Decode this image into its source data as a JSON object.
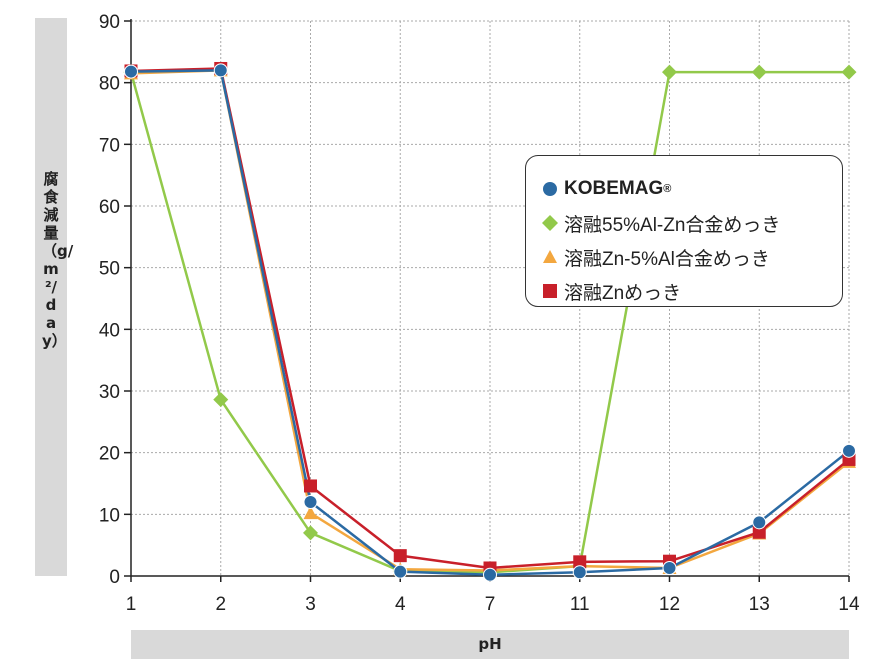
{
  "chart_data": {
    "type": "line",
    "ylabel": "腐食減量（g/m²/day）",
    "xlabel": "pH",
    "categories": [
      "1",
      "2",
      "3",
      "4",
      "7",
      "11",
      "12",
      "13",
      "14"
    ],
    "ylim": [
      0,
      90
    ],
    "yticks": [
      0,
      10,
      20,
      30,
      40,
      50,
      60,
      70,
      80,
      90
    ],
    "grid": true,
    "legend_position": "top-right",
    "series": [
      {
        "name": "KOBEMAG",
        "name_mark": "®",
        "marker": "circle",
        "color": "#2b6aa3",
        "values": [
          81.8,
          82.0,
          12.0,
          0.7,
          0.2,
          0.6,
          1.3,
          8.7,
          20.3
        ]
      },
      {
        "name": "溶融55%Al-Zn合金めっき",
        "marker": "diamond",
        "color": "#92c94a",
        "values": [
          81.7,
          28.6,
          7.0,
          0.8,
          0.6,
          1.6,
          81.7,
          81.7,
          81.7
        ]
      },
      {
        "name": "溶融Zn-5%Al合金めっき",
        "marker": "triangle",
        "color": "#f3a73f",
        "values": [
          81.5,
          82.0,
          10.2,
          1.1,
          0.9,
          1.6,
          1.3,
          6.9,
          18.5
        ]
      },
      {
        "name": "溶融Znめっき",
        "marker": "square",
        "color": "#c8202a",
        "values": [
          81.9,
          82.3,
          14.6,
          3.3,
          1.3,
          2.3,
          2.4,
          7.1,
          18.9
        ]
      }
    ]
  }
}
